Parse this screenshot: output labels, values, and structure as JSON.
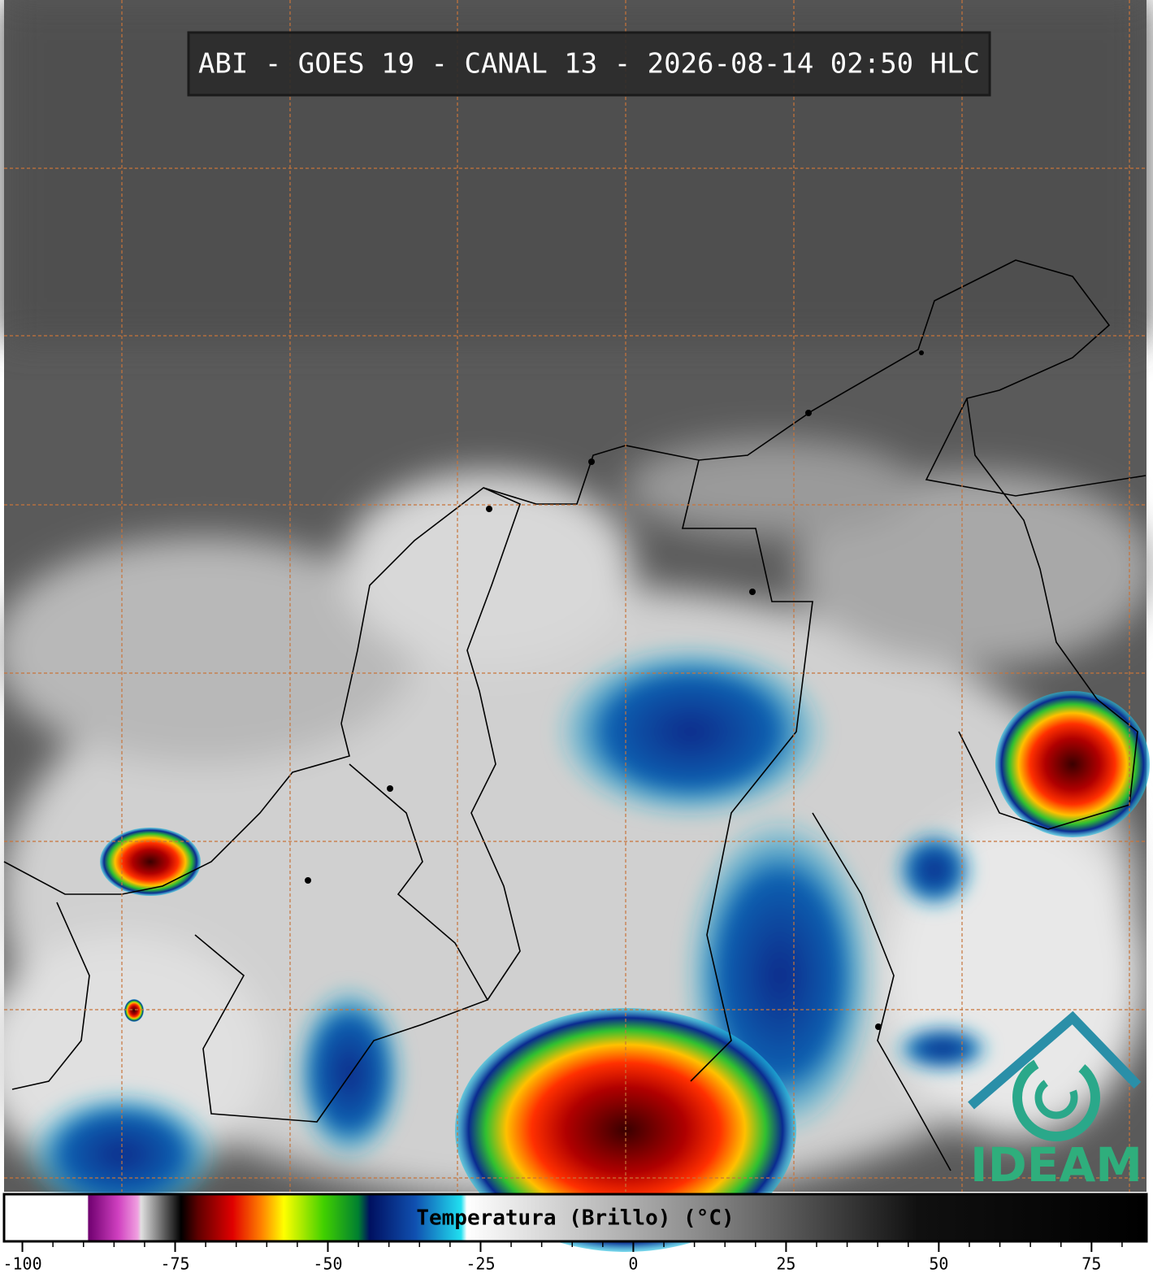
{
  "title": "ABI - GOES 19 - CANAL 13 - 2026-08-14 02:50 HLC",
  "colorbar": {
    "label": "Temperatura (Brillo) (°C)",
    "xlim": [
      -103,
      84
    ],
    "ticks": [
      -100,
      -75,
      -50,
      -25,
      0,
      25,
      50,
      75
    ],
    "minor_ticks": [
      -100,
      -95,
      -90,
      -85,
      -80,
      -75,
      -70,
      -65,
      -60,
      -55,
      -50,
      -45,
      -40,
      -35,
      -30,
      -25,
      -20,
      -15,
      -10,
      -5,
      0,
      5,
      10,
      15,
      20,
      25,
      30,
      35,
      40,
      45,
      50,
      55,
      60,
      65,
      70,
      75,
      80
    ]
  },
  "logo": "IDEAM"
}
